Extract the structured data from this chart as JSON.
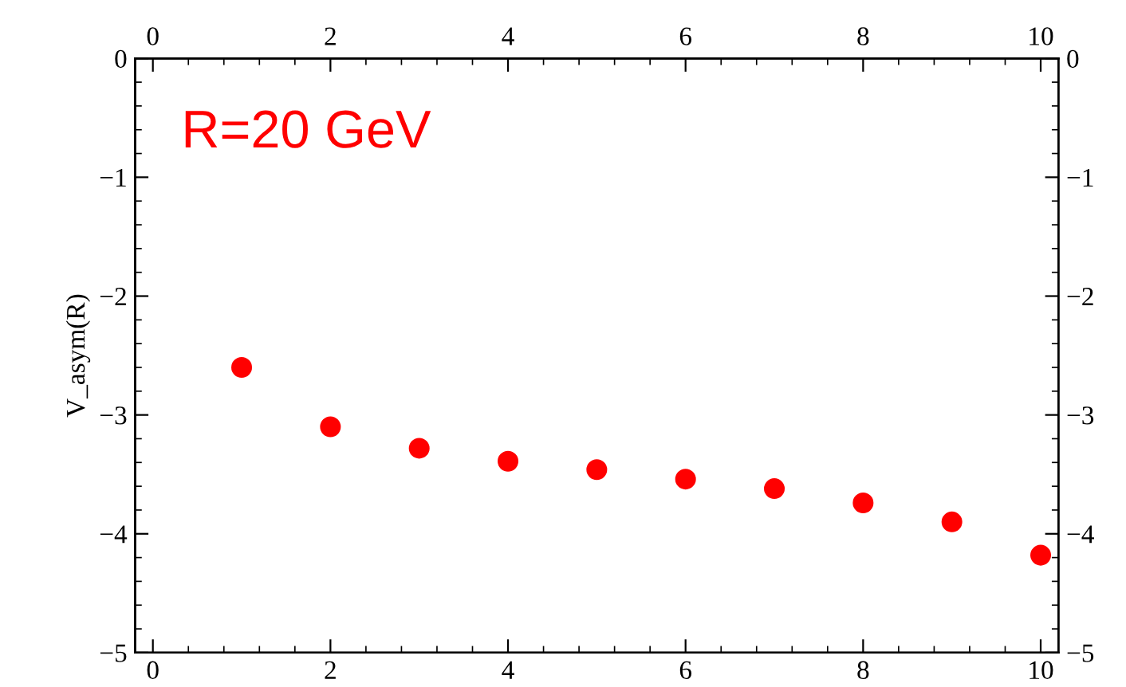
{
  "chart_data": {
    "type": "scatter",
    "ylabel": "V_asym(R)",
    "annotations": [
      "R=20 GeV"
    ],
    "x": [
      1,
      2,
      3,
      4,
      5,
      6,
      7,
      8,
      9,
      10
    ],
    "series": [
      {
        "color": "#ff0000",
        "values": [
          -2.6,
          -3.1,
          -3.28,
          -3.39,
          -3.46,
          -3.54,
          -3.62,
          -3.74,
          -3.9,
          -4.18
        ]
      }
    ],
    "xlim": [
      -0.2,
      10.2
    ],
    "xticks": [
      0,
      2,
      4,
      6,
      8,
      10
    ],
    "x2lim": [
      -0.2,
      10.2
    ],
    "x2ticks": [
      0,
      2,
      4,
      6,
      8,
      10
    ],
    "ylim": [
      -5,
      0
    ],
    "yticks": [
      {
        "value": -5,
        "label": "−5"
      },
      {
        "value": -4,
        "label": "−4"
      },
      {
        "value": -3,
        "label": "−3"
      },
      {
        "value": -2,
        "label": "−2"
      },
      {
        "value": -1,
        "label": "−1"
      },
      0
    ],
    "y2lim": [
      -5,
      0
    ],
    "y2ticks": [
      {
        "value": -5,
        "label": "−5"
      },
      {
        "value": -4,
        "label": "−4"
      },
      {
        "value": -3,
        "label": "−3"
      },
      {
        "value": -2,
        "label": "−2"
      },
      {
        "value": -1,
        "label": "−1"
      },
      0
    ],
    "marker": "circle",
    "grid": false,
    "legend": false
  }
}
